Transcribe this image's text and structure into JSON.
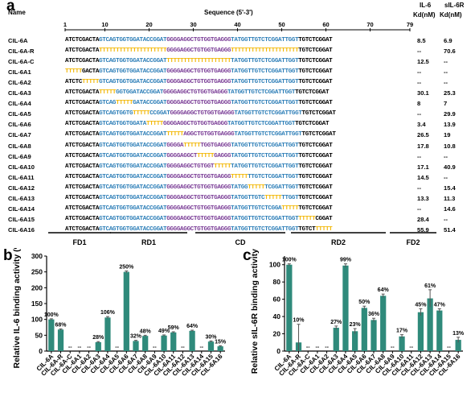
{
  "panel_a": {
    "label": "a",
    "name_header": "Name",
    "sequence_header": "Sequence (5'-3')",
    "kd_il6_header": [
      "IL-6",
      "Kd(nM)"
    ],
    "kd_sil6r_header": [
      "sIL-6R",
      "Kd(nM)"
    ],
    "ruler": [
      "1",
      "10",
      "20",
      "30",
      "40",
      "50",
      "60",
      "70",
      "79"
    ],
    "regions": [
      "FD1",
      "RD1",
      "CD",
      "RD2",
      "FD2"
    ],
    "rows": [
      {
        "name": "CIL-6A",
        "segments": [
          [
            "ATCTCGACTA",
            "1"
          ],
          [
            "GTCAGTGGTGGATACCGGAT",
            "2"
          ],
          [
            "GGGGAGGCTGTGGTGAGGG",
            "4"
          ],
          [
            "TATGGTTGTCTCGGATTGGT",
            "2"
          ],
          [
            "TGTCTCGGAT",
            "1"
          ]
        ],
        "il6": "8.5",
        "sil6r": "6.9"
      },
      {
        "name": "CIL-6A-R",
        "segments": [
          [
            "ATCTCGACTA",
            "1"
          ],
          [
            "TTTTTTTTTTTTTTTTTTTT",
            "3"
          ],
          [
            "GGGGAGGCTGTGGTGAGGG",
            "4"
          ],
          [
            "TTTTTTTTTTTTTTTTTTTT",
            "3"
          ],
          [
            "TGTCTCGGAT",
            "1"
          ]
        ],
        "il6": "--",
        "sil6r": "70.6"
      },
      {
        "name": "CIL-6A-C",
        "segments": [
          [
            "ATCTCGACTA",
            "1"
          ],
          [
            "GTCAGTGGTGGATACCGGAT",
            "2"
          ],
          [
            "TTTTTTTTTTTTTTTTTTT",
            "3"
          ],
          [
            "TATGGTTGTCTCGGATTGGT",
            "2"
          ],
          [
            "TGTCTCGGAT",
            "1"
          ]
        ],
        "il6": "12.5",
        "sil6r": "--"
      },
      {
        "name": "CIL-6A1",
        "segments": [
          [
            "TTTTT",
            "3"
          ],
          [
            "GACTA",
            "1"
          ],
          [
            "GTCAGTGGTGGATACCGGAT",
            "2"
          ],
          [
            "GGGGAGGCTGTGGTGAGGG",
            "4"
          ],
          [
            "TATGGTTGTCTCGGATTGGT",
            "2"
          ],
          [
            "TGTCTCGGAT",
            "1"
          ]
        ],
        "il6": "--",
        "sil6r": "--"
      },
      {
        "name": "CIL-6A2",
        "segments": [
          [
            "ATCTC",
            "1"
          ],
          [
            "TTTTT",
            "3"
          ],
          [
            "GTCAGTGGTGGATACCGGAT",
            "2"
          ],
          [
            "GGGGAGGCTGTGGTGAGGG",
            "4"
          ],
          [
            "TATGGTTGTCTCGGATTGGT",
            "2"
          ],
          [
            "TGTCTCGGAT",
            "1"
          ]
        ],
        "il6": "--",
        "sil6r": "--"
      },
      {
        "name": "CIL-6A3",
        "segments": [
          [
            "ATCTCGACTA",
            "1"
          ],
          [
            "TTTTT",
            "3"
          ],
          [
            "GGTGGATACCGGAT",
            "2"
          ],
          [
            "GGGGAGGCTGTGGTGAGGG",
            "4"
          ],
          [
            "TATGGTTGTCTCGGATTGGT",
            "2"
          ],
          [
            "TGTCTCGGAT",
            "1"
          ]
        ],
        "il6": "30.1",
        "sil6r": "25.3"
      },
      {
        "name": "CIL-6A4",
        "segments": [
          [
            "ATCTCGACTA",
            "1"
          ],
          [
            "GTCAG",
            "2"
          ],
          [
            "TTTTT",
            "3"
          ],
          [
            "GATACCGGAT",
            "2"
          ],
          [
            "GGGGAGGCTGTGGTGAGGG",
            "4"
          ],
          [
            "TATGGTTGTCTCGGATTGGT",
            "2"
          ],
          [
            "TGTCTCGGAT",
            "1"
          ]
        ],
        "il6": "8",
        "sil6r": "7"
      },
      {
        "name": "CIL-6A5",
        "segments": [
          [
            "ATCTCGACTA",
            "1"
          ],
          [
            "GTCAGTGGTG",
            "2"
          ],
          [
            "TTTTT",
            "3"
          ],
          [
            "CCGGAT",
            "2"
          ],
          [
            "GGGGAGGCTGTGGTGAGGG",
            "4"
          ],
          [
            "TATGGTTGTCTCGGATTGGT",
            "2"
          ],
          [
            "TGTCTCGGAT",
            "1"
          ]
        ],
        "il6": "--",
        "sil6r": "29.9"
      },
      {
        "name": "CIL-6A6",
        "segments": [
          [
            "ATCTCGACTA",
            "1"
          ],
          [
            "GTCAGTGGTGGATA",
            "2"
          ],
          [
            "TTTTT",
            "3"
          ],
          [
            "GGGGAGGCTGTGGTGAGGG",
            "4"
          ],
          [
            "TATGGTTGTCTCGGATTGGT",
            "2"
          ],
          [
            "TGTCTCGGAT",
            "1"
          ]
        ],
        "il6": "3.4",
        "sil6r": "13.9"
      },
      {
        "name": "CIL-6A7",
        "segments": [
          [
            "ATCTCGACTA",
            "1"
          ],
          [
            "GTCAGTGGTGGATACCGGAT",
            "2"
          ],
          [
            "TTTTT",
            "3"
          ],
          [
            "AGGCTGTGGTGAGGG",
            "4"
          ],
          [
            "TATGGTTGTCTCGGATTGGT",
            "2"
          ],
          [
            "TGTCTCGGAT",
            "1"
          ]
        ],
        "il6": "26.5",
        "sil6r": "19"
      },
      {
        "name": "CIL-6A8",
        "segments": [
          [
            "ATCTCGACTA",
            "1"
          ],
          [
            "GTCAGTGGTGGATACCGGAT",
            "2"
          ],
          [
            "GGGGA",
            "4"
          ],
          [
            "TTTTT",
            "3"
          ],
          [
            "TGGTGAGGG",
            "4"
          ],
          [
            "TATGGTTGTCTCGGATTGGT",
            "2"
          ],
          [
            "TGTCTCGGAT",
            "1"
          ]
        ],
        "il6": "17.8",
        "sil6r": "10.8"
      },
      {
        "name": "CIL-6A9",
        "segments": [
          [
            "ATCTCGACTA",
            "1"
          ],
          [
            "GTCAGTGGTGGATACCGGAT",
            "2"
          ],
          [
            "GGGGAGGCT",
            "4"
          ],
          [
            "TTTTT",
            "3"
          ],
          [
            "GAGGG",
            "4"
          ],
          [
            "TATGGTTGTCTCGGATTGGT",
            "2"
          ],
          [
            "TGTCTCGGAT",
            "1"
          ]
        ],
        "il6": "--",
        "sil6r": "--"
      },
      {
        "name": "CIL-6A10",
        "segments": [
          [
            "ATCTCGACTA",
            "1"
          ],
          [
            "GTCAGTGGTGGATACCGGAT",
            "2"
          ],
          [
            "GGGGAGGCTGTGGT",
            "4"
          ],
          [
            "TTTTT",
            "3"
          ],
          [
            "TATGGTTGTCTCGGATTGGT",
            "2"
          ],
          [
            "TGTCTCGGAT",
            "1"
          ]
        ],
        "il6": "17.1",
        "sil6r": "40.9"
      },
      {
        "name": "CIL-6A11",
        "segments": [
          [
            "ATCTCGACTA",
            "1"
          ],
          [
            "GTCAGTGGTGGATACCGGAT",
            "2"
          ],
          [
            "GGGGAGGCTGTGGTGAGGG",
            "4"
          ],
          [
            "TTTTT",
            "3"
          ],
          [
            "TTGTCTCGGATTGGT",
            "2"
          ],
          [
            "TGTCTCGGAT",
            "1"
          ]
        ],
        "il6": "14.5",
        "sil6r": "--"
      },
      {
        "name": "CIL-6A12",
        "segments": [
          [
            "ATCTCGACTA",
            "1"
          ],
          [
            "GTCAGTGGTGGATACCGGAT",
            "2"
          ],
          [
            "GGGGAGGCTGTGGTGAGGG",
            "4"
          ],
          [
            "TATGG",
            "2"
          ],
          [
            "TTTTT",
            "3"
          ],
          [
            "TCGGATTGGT",
            "2"
          ],
          [
            "TGTCTCGGAT",
            "1"
          ]
        ],
        "il6": "--",
        "sil6r": "15.4"
      },
      {
        "name": "CIL-6A13",
        "segments": [
          [
            "ATCTCGACTA",
            "1"
          ],
          [
            "GTCAGTGGTGGATACCGGAT",
            "2"
          ],
          [
            "GGGGAGGCTGTGGTGAGGG",
            "4"
          ],
          [
            "TATGGTTGTC",
            "2"
          ],
          [
            "TTTTT",
            "3"
          ],
          [
            "TTGGT",
            "2"
          ],
          [
            "TGTCTCGGAT",
            "1"
          ]
        ],
        "il6": "13.3",
        "sil6r": "11.3"
      },
      {
        "name": "CIL-6A14",
        "segments": [
          [
            "ATCTCGACTA",
            "1"
          ],
          [
            "GTCAGTGGTGGATACCGGAT",
            "2"
          ],
          [
            "GGGGAGGCTGTGGTGAGGG",
            "4"
          ],
          [
            "TATGGTTGTCTCGGA",
            "2"
          ],
          [
            "TTTTT",
            "3"
          ],
          [
            "TGTCTCGGAT",
            "1"
          ]
        ],
        "il6": "--",
        "sil6r": "14.6"
      },
      {
        "name": "CIL-6A15",
        "segments": [
          [
            "ATCTCGACTA",
            "1"
          ],
          [
            "GTCAGTGGTGGATACCGGAT",
            "2"
          ],
          [
            "GGGGAGGCTGTGGTGAGGG",
            "4"
          ],
          [
            "TATGGTTGTCTCGGATTGGT",
            "2"
          ],
          [
            "TTTTT",
            "3"
          ],
          [
            "CGGAT",
            "1"
          ]
        ],
        "il6": "28.4",
        "sil6r": "--"
      },
      {
        "name": "CIL-6A16",
        "segments": [
          [
            "ATCTCGACTA",
            "1"
          ],
          [
            "GTCAGTGGTGGATACCGGAT",
            "2"
          ],
          [
            "GGGGAGGCTGTGGTGAGGG",
            "4"
          ],
          [
            "TATGGTTGTCTCGGATTGGT",
            "2"
          ],
          [
            "TGTCT",
            "1"
          ],
          [
            "TTTTT",
            "3"
          ]
        ],
        "il6": "55.9",
        "sil6r": "51.4"
      }
    ]
  },
  "colors": {
    "seg1": "#000000",
    "seg2": "#2e7fb8",
    "seg3": "#f2b705",
    "seg4": "#7a3d96",
    "bar": "#2f8a7b",
    "error": "#555555"
  },
  "chart_data": [
    {
      "type": "bar",
      "panel_label": "b",
      "ylabel": "Relative IL-6 binding activity (%)",
      "ylim": [
        0,
        300
      ],
      "yticks": [
        "0",
        "50",
        "100",
        "150",
        "200",
        "250",
        "300"
      ],
      "categories": [
        "CIL-6A",
        "CIL-6A-R",
        "CIL-6A-C",
        "CIL-6A1",
        "CIL-6A2",
        "CIL-6A3",
        "CIL-6A4",
        "CIL-6A5",
        "CIL-6A6",
        "CIL-6A7",
        "CIL-6A8",
        "CIL-6A9",
        "CIL-6A10",
        "CIL-6A11",
        "CIL-6A12",
        "CIL-6A13",
        "CIL-6A14",
        "CIL-6A15",
        "CIL-6A16"
      ],
      "values": [
        100,
        68,
        0,
        0,
        0,
        28,
        106,
        0,
        250,
        32,
        48,
        0,
        49,
        59,
        0,
        64,
        0,
        30,
        15
      ],
      "errors": [
        2,
        2,
        0,
        0,
        0,
        2,
        3,
        0,
        3,
        2,
        2,
        0,
        2,
        2,
        0,
        2,
        0,
        2,
        2
      ],
      "labels": [
        "100%",
        "68%",
        "--",
        "--",
        "--",
        "28%",
        "106%",
        "--",
        "250%",
        "32%",
        "48%",
        "--",
        "49%",
        "59%",
        "--",
        "64%",
        "--",
        "30%",
        "15%"
      ]
    },
    {
      "type": "bar",
      "panel_label": "c",
      "ylabel": "Relative sIL-6R binding activity (%)",
      "ylim": [
        0,
        110
      ],
      "yticks": [
        "0",
        "20",
        "40",
        "60",
        "80",
        "100"
      ],
      "categories": [
        "CIL-6A",
        "CIL-6A-R",
        "CIL-6A-C",
        "CIL-6A1",
        "CIL-6A2",
        "CIL-6A3",
        "CIL-6A4",
        "CIL-6A5",
        "CIL-6A6",
        "CIL-6A7",
        "CIL-6A8",
        "CIL-6A9",
        "CIL-6A10",
        "CIL-6A11",
        "CIL-6A12",
        "CIL-6A13",
        "CIL-6A14",
        "CIL-6A15",
        "CIL-6A16"
      ],
      "values": [
        100,
        10,
        0,
        0,
        0,
        27,
        99,
        23,
        50,
        36,
        64,
        0,
        17,
        0,
        45,
        61,
        47,
        0,
        13
      ],
      "errors": [
        1,
        21,
        0,
        0,
        0,
        2,
        2,
        3,
        2,
        2,
        2,
        0,
        2,
        0,
        4,
        10,
        2,
        0,
        3
      ],
      "labels": [
        "100%",
        "10%",
        "--",
        "--",
        "--",
        "27%",
        "99%",
        "23%",
        "50%",
        "36%",
        "64%",
        "--",
        "17%",
        "--",
        "45%",
        "61%",
        "47%",
        "--",
        "13%"
      ]
    }
  ]
}
